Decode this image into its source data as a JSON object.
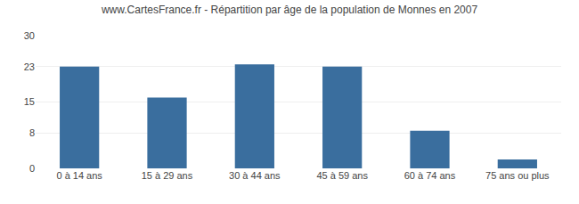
{
  "chart_data": {
    "type": "bar",
    "title": "www.CartesFrance.fr - Répartition par âge de la population de Monnes en 2007",
    "categories": [
      "0 à 14 ans",
      "15 à 29 ans",
      "30 à 44 ans",
      "45 à 59 ans",
      "60 à 74 ans",
      "75 ans ou plus"
    ],
    "values": [
      23,
      16,
      23.5,
      23,
      8.5,
      2
    ],
    "color": "#3a6e9e",
    "ylim": [
      0,
      30
    ],
    "yticks": [
      0,
      8,
      15,
      23,
      30
    ],
    "grid": true
  }
}
